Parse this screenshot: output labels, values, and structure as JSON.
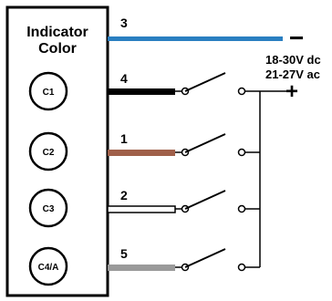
{
  "panel": {
    "title_line1": "Indicator",
    "title_line2": "Color"
  },
  "indicators": [
    "C1",
    "C2",
    "C3",
    "C4/A"
  ],
  "wires": [
    {
      "number": "3",
      "color": "#2a7fc1",
      "style": "solid"
    },
    {
      "number": "4",
      "color": "#000000",
      "style": "solid"
    },
    {
      "number": "1",
      "color": "#a0604a",
      "style": "solid"
    },
    {
      "number": "2",
      "color": "#ffffff",
      "style": "outlined"
    },
    {
      "number": "5",
      "color": "#9a9a9a",
      "style": "solid"
    }
  ],
  "supply": {
    "minus_symbol": "−",
    "plus_symbol": "+",
    "voltage_dc": "18-30V dc",
    "voltage_ac": "21-27V ac"
  }
}
